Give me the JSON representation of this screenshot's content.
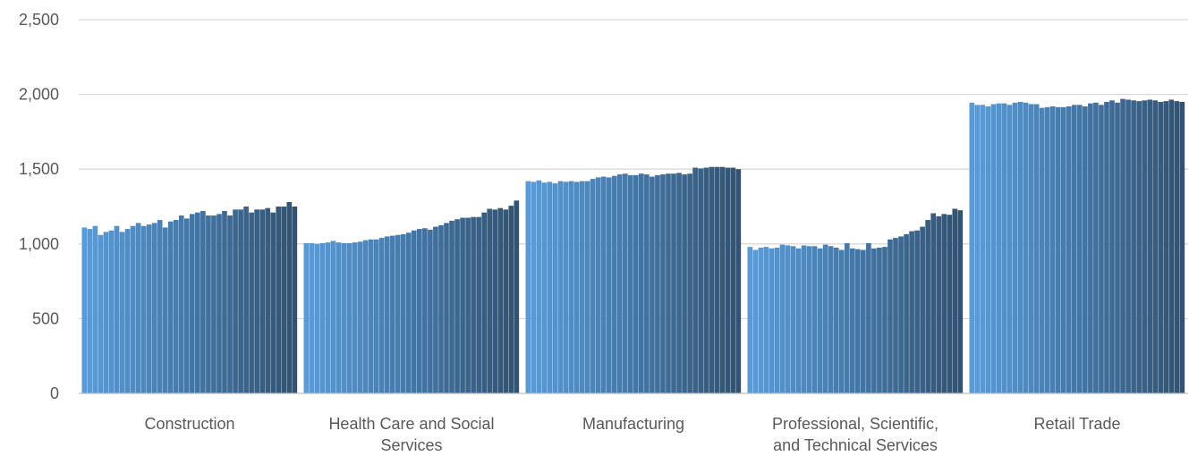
{
  "chart_data": {
    "type": "bar",
    "title": "",
    "xlabel": "",
    "ylabel": "",
    "ylim": [
      0,
      2500
    ],
    "yticks": [
      0,
      500,
      1000,
      1500,
      2000,
      2500
    ],
    "ytick_labels": [
      "0",
      "500",
      "1,000",
      "1,500",
      "2,000",
      "2,500"
    ],
    "grid": "horizontal",
    "legend": "none",
    "colors": {
      "light": "#5b9bd5",
      "dark": "#2f5375",
      "grid": "#d9d9d9",
      "axis": "#bfbfbf",
      "text": "#595959"
    },
    "categories": [
      {
        "label": [
          "Construction"
        ],
        "values": [
          1110,
          1100,
          1120,
          1060,
          1080,
          1090,
          1120,
          1080,
          1100,
          1120,
          1140,
          1120,
          1130,
          1140,
          1160,
          1110,
          1150,
          1160,
          1190,
          1170,
          1200,
          1210,
          1220,
          1190,
          1190,
          1200,
          1220,
          1190,
          1230,
          1230,
          1250,
          1210,
          1230,
          1230,
          1240,
          1210,
          1250,
          1250,
          1280,
          1250
        ]
      },
      {
        "label": [
          "Health Care and Social",
          "Services"
        ],
        "values": [
          1005,
          1005,
          1000,
          1005,
          1010,
          1020,
          1010,
          1005,
          1005,
          1010,
          1015,
          1025,
          1030,
          1030,
          1040,
          1050,
          1055,
          1060,
          1065,
          1075,
          1090,
          1100,
          1105,
          1095,
          1115,
          1125,
          1140,
          1155,
          1165,
          1175,
          1175,
          1180,
          1180,
          1210,
          1235,
          1230,
          1240,
          1230,
          1255,
          1290
        ]
      },
      {
        "label": [
          "Manufacturing"
        ],
        "values": [
          1420,
          1415,
          1425,
          1410,
          1415,
          1405,
          1420,
          1415,
          1420,
          1415,
          1420,
          1420,
          1435,
          1445,
          1450,
          1445,
          1455,
          1465,
          1470,
          1460,
          1460,
          1470,
          1465,
          1450,
          1460,
          1465,
          1470,
          1470,
          1475,
          1465,
          1470,
          1510,
          1505,
          1510,
          1515,
          1515,
          1515,
          1510,
          1510,
          1500
        ]
      },
      {
        "label": [
          "Professional, Scientific,",
          "and Technical Services"
        ],
        "values": [
          980,
          960,
          975,
          980,
          970,
          975,
          995,
          990,
          985,
          970,
          990,
          985,
          985,
          970,
          995,
          985,
          975,
          960,
          1005,
          970,
          965,
          960,
          1005,
          970,
          975,
          980,
          1030,
          1040,
          1050,
          1065,
          1085,
          1090,
          1115,
          1160,
          1205,
          1185,
          1200,
          1195,
          1235,
          1225
        ]
      },
      {
        "label": [
          "Retail Trade"
        ],
        "values": [
          1945,
          1930,
          1930,
          1920,
          1935,
          1940,
          1940,
          1930,
          1945,
          1950,
          1945,
          1935,
          1935,
          1910,
          1915,
          1920,
          1915,
          1915,
          1920,
          1930,
          1930,
          1920,
          1940,
          1945,
          1930,
          1950,
          1960,
          1945,
          1970,
          1965,
          1960,
          1955,
          1960,
          1965,
          1960,
          1950,
          1955,
          1965,
          1955,
          1950
        ]
      }
    ]
  }
}
